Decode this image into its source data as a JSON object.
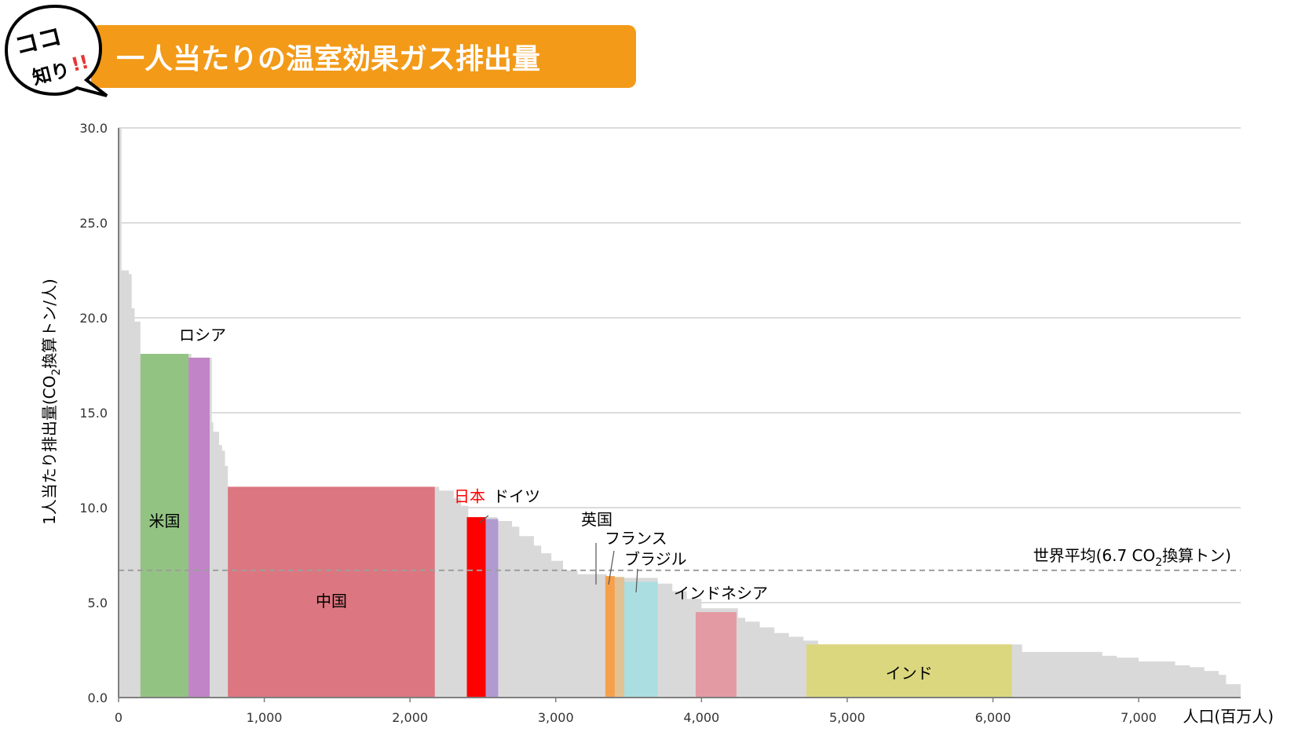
{
  "header": {
    "badge_line1": "ココ",
    "badge_line2": "知り",
    "badge_mark": "!!",
    "title": "一人当たりの温室効果ガス排出量"
  },
  "chart_data": {
    "type": "bar",
    "variant": "variable-width",
    "title": "一人当たりの温室効果ガス排出量",
    "ylabel_pre": "1人当たり排出量(CO",
    "ylabel_sub": "2",
    "ylabel_post": "換算トン/人)",
    "xlabel": "人口(百万人)",
    "xlim": [
      0,
      7700
    ],
    "ylim": [
      0,
      30
    ],
    "x_ticks": [
      0,
      1000,
      2000,
      3000,
      4000,
      5000,
      6000,
      7000
    ],
    "x_tick_labels": [
      "0",
      "1,000",
      "2,000",
      "3,000",
      "4,000",
      "5,000",
      "6,000",
      "7,000"
    ],
    "y_ticks": [
      0,
      5,
      10,
      15,
      20,
      25,
      30
    ],
    "y_tick_labels": [
      "0.0",
      "5.0",
      "10.0",
      "15.0",
      "20.0",
      "25.0",
      "30.0"
    ],
    "grid": "horizontal",
    "world_average": {
      "value": 6.7,
      "label_pre": "世界平均(6.7 CO",
      "label_sub": "2",
      "label_post": "換算トン)"
    },
    "background_profile": [
      [
        0,
        30.0
      ],
      [
        10,
        30.0
      ],
      [
        20,
        22.5
      ],
      [
        70,
        22.3
      ],
      [
        90,
        20.5
      ],
      [
        110,
        19.8
      ],
      [
        150,
        18.1
      ],
      [
        500,
        17.9
      ],
      [
        640,
        14.5
      ],
      [
        650,
        14.0
      ],
      [
        690,
        13.3
      ],
      [
        710,
        13.0
      ],
      [
        730,
        12.2
      ],
      [
        750,
        11.1
      ],
      [
        2200,
        10.9
      ],
      [
        2300,
        10.5
      ],
      [
        2350,
        10.1
      ],
      [
        2400,
        9.5
      ],
      [
        2600,
        9.3
      ],
      [
        2700,
        9.0
      ],
      [
        2750,
        8.5
      ],
      [
        2850,
        8.0
      ],
      [
        2900,
        7.6
      ],
      [
        2970,
        7.2
      ],
      [
        3050,
        6.7
      ],
      [
        3150,
        6.5
      ],
      [
        3350,
        6.3
      ],
      [
        3700,
        6.0
      ],
      [
        3800,
        5.6
      ],
      [
        3900,
        5.2
      ],
      [
        4000,
        4.7
      ],
      [
        4250,
        4.2
      ],
      [
        4300,
        4.0
      ],
      [
        4400,
        3.7
      ],
      [
        4500,
        3.4
      ],
      [
        4600,
        3.2
      ],
      [
        4700,
        3.0
      ],
      [
        4800,
        2.8
      ],
      [
        6200,
        2.4
      ],
      [
        6750,
        2.2
      ],
      [
        6850,
        2.1
      ],
      [
        7000,
        1.9
      ],
      [
        7250,
        1.7
      ],
      [
        7350,
        1.6
      ],
      [
        7450,
        1.4
      ],
      [
        7550,
        1.2
      ],
      [
        7600,
        0.7
      ],
      [
        7700,
        0.7
      ]
    ],
    "countries": [
      {
        "name": "米国",
        "x_start": 150,
        "x_end": 480,
        "value": 18.1,
        "color": "#92c383",
        "label_color": "#000000"
      },
      {
        "name": "ロシア",
        "x_start": 480,
        "x_end": 625,
        "value": 17.9,
        "color": "#c084c7",
        "label_color": "#000000"
      },
      {
        "name": "中国",
        "x_start": 750,
        "x_end": 2170,
        "value": 11.1,
        "color": "#dc7680",
        "label_color": "#000000"
      },
      {
        "name": "日本",
        "x_start": 2390,
        "x_end": 2520,
        "value": 9.5,
        "color": "#ff0000",
        "label_color": "#ff0000"
      },
      {
        "name": "ドイツ",
        "x_start": 2520,
        "x_end": 2605,
        "value": 9.4,
        "color": "#b19ad0",
        "label_color": "#000000"
      },
      {
        "name": "英国",
        "x_start": 3340,
        "x_end": 3405,
        "value": 6.4,
        "color": "#f6a04c",
        "label_color": "#000000"
      },
      {
        "name": "フランス",
        "x_start": 3405,
        "x_end": 3470,
        "value": 6.35,
        "color": "#e2c293",
        "label_color": "#000000"
      },
      {
        "name": "ブラジル",
        "x_start": 3470,
        "x_end": 3700,
        "value": 6.1,
        "color": "#abdee0",
        "label_color": "#000000"
      },
      {
        "name": "インドネシア",
        "x_start": 3960,
        "x_end": 4240,
        "value": 4.5,
        "color": "#e49aa2",
        "label_color": "#000000"
      },
      {
        "name": "インド",
        "x_start": 4720,
        "x_end": 6130,
        "value": 2.8,
        "color": "#dbd77f",
        "label_color": "#000000"
      }
    ]
  }
}
